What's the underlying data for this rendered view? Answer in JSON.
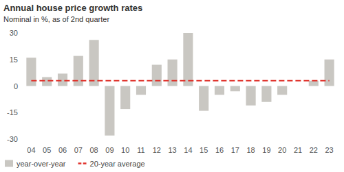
{
  "chart_data": {
    "type": "bar",
    "title": "Annual house price growth rates",
    "subtitle": "Nominal in %, as of 2nd quarter",
    "categories": [
      "04",
      "05",
      "06",
      "07",
      "08",
      "09",
      "10",
      "11",
      "12",
      "13",
      "14",
      "15",
      "16",
      "17",
      "18",
      "19",
      "20",
      "21",
      "22",
      "23"
    ],
    "series": [
      {
        "name": "year-over-year",
        "type": "bar",
        "color": "#c9c7c2",
        "values": [
          16,
          5,
          7,
          17,
          26,
          -28,
          -13,
          -5,
          12,
          15,
          30,
          -14,
          -5,
          -3,
          -11,
          -9,
          -5,
          0,
          3,
          15
        ]
      },
      {
        "name": "20-year average",
        "type": "line",
        "line_style": "dashed",
        "color": "#e0322b",
        "values": [
          3,
          3,
          3,
          3,
          3,
          3,
          3,
          3,
          3,
          3,
          3,
          3,
          3,
          3,
          3,
          3,
          3,
          3,
          3,
          3
        ]
      }
    ],
    "ylim": [
      -30,
      30
    ],
    "yticks": [
      -30,
      -15,
      0,
      15,
      30
    ],
    "grid": false,
    "legend": "lower left"
  }
}
